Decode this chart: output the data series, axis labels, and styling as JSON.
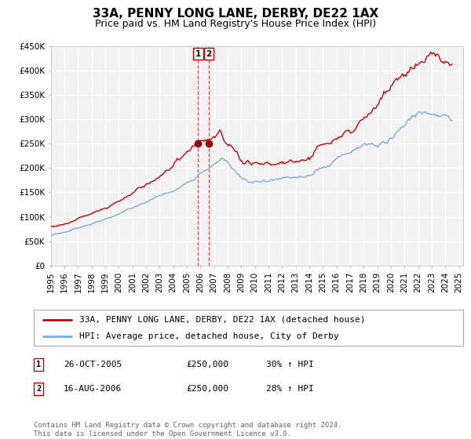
{
  "title": "33A, PENNY LONG LANE, DERBY, DE22 1AX",
  "subtitle": "Price paid vs. HM Land Registry's House Price Index (HPI)",
  "ylim": [
    0,
    450000
  ],
  "yticks": [
    0,
    50000,
    100000,
    150000,
    200000,
    250000,
    300000,
    350000,
    400000,
    450000
  ],
  "ytick_labels": [
    "£0",
    "£50K",
    "£100K",
    "£150K",
    "£200K",
    "£250K",
    "£300K",
    "£350K",
    "£400K",
    "£450K"
  ],
  "xlim_start": 1995.0,
  "xlim_end": 2025.3,
  "xticks": [
    1995,
    1996,
    1997,
    1998,
    1999,
    2000,
    2001,
    2002,
    2003,
    2004,
    2005,
    2006,
    2007,
    2008,
    2009,
    2010,
    2011,
    2012,
    2013,
    2014,
    2015,
    2016,
    2017,
    2018,
    2019,
    2020,
    2021,
    2022,
    2023,
    2024,
    2025
  ],
  "line1_color": "#cc0000",
  "line2_color": "#7aacdc",
  "marker_color": "#990000",
  "bg_color": "#ffffff",
  "plot_bg_color": "#f2f2f2",
  "grid_color": "#ffffff",
  "legend_label1": "33A, PENNY LONG LANE, DERBY, DE22 1AX (detached house)",
  "legend_label2": "HPI: Average price, detached house, City of Derby",
  "transaction1_date": 2005.82,
  "transaction1_price": 250000,
  "transaction1_label": "1",
  "transaction2_date": 2006.62,
  "transaction2_price": 250000,
  "transaction2_label": "2",
  "annotation1_date": "26-OCT-2005",
  "annotation1_price": "£250,000",
  "annotation1_hpi": "30% ↑ HPI",
  "annotation2_date": "16-AUG-2006",
  "annotation2_price": "£250,000",
  "annotation2_hpi": "28% ↑ HPI",
  "footer": "Contains HM Land Registry data © Crown copyright and database right 2024.\nThis data is licensed under the Open Government Licence v3.0.",
  "title_fontsize": 11,
  "subtitle_fontsize": 9,
  "tick_fontsize": 7.5,
  "legend_fontsize": 8,
  "annotation_fontsize": 8,
  "footer_fontsize": 6.5
}
